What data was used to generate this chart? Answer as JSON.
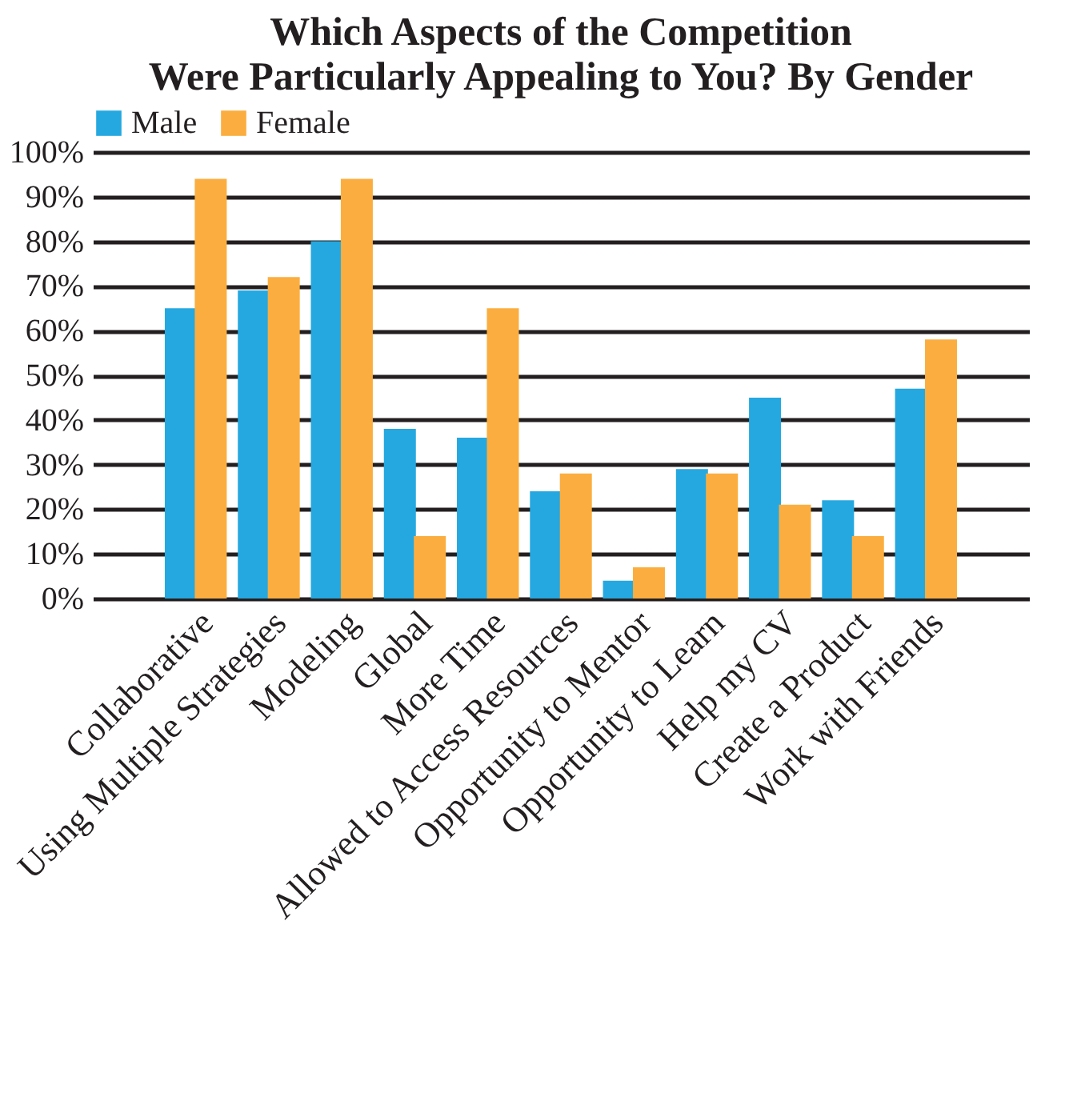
{
  "chart_data": {
    "type": "bar",
    "title": "Which Aspects of the Competition\nWere Particularly Appealing to You? By Gender",
    "categories": [
      "Collaborative",
      "Using Multiple Strategies",
      "Modeling",
      "Global",
      "More Time",
      "Allowed to Access Resources",
      "Opportunity to Mentor",
      "Opportunity to Learn",
      "Help my CV",
      "Create a Product",
      "Work with Friends"
    ],
    "series": [
      {
        "name": "Male",
        "color": "#25a8e0",
        "values": [
          65,
          69,
          80,
          38,
          36,
          24,
          4,
          29,
          45,
          22,
          47
        ]
      },
      {
        "name": "Female",
        "color": "#fbae3f",
        "values": [
          94,
          72,
          94,
          14,
          65,
          28,
          7,
          28,
          21,
          14,
          58
        ]
      }
    ],
    "ylim": [
      0,
      100
    ],
    "yticks": [
      {
        "value": 0,
        "label": "0%"
      },
      {
        "value": 10,
        "label": "10%"
      },
      {
        "value": 20,
        "label": "20%"
      },
      {
        "value": 30,
        "label": "30%"
      },
      {
        "value": 40,
        "label": "40%"
      },
      {
        "value": 50,
        "label": "50%"
      },
      {
        "value": 60,
        "label": "60%"
      },
      {
        "value": 70,
        "label": "70%"
      },
      {
        "value": 80,
        "label": "80%"
      },
      {
        "value": 90,
        "label": "90%"
      },
      {
        "value": 100,
        "label": "100%"
      }
    ],
    "grid": true,
    "legend": "top"
  }
}
